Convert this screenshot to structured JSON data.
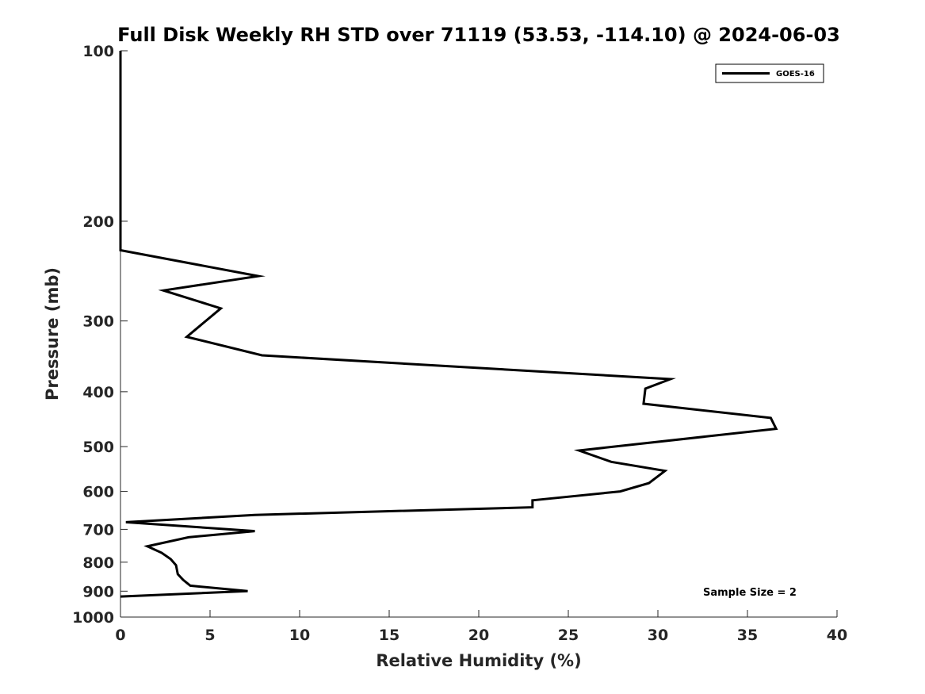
{
  "chart_data": {
    "type": "line",
    "title": "Full Disk Weekly RH STD over 71119 (53.53, -114.10) @ 2024-06-03",
    "xlabel": "Relative Humidity (%)",
    "ylabel": "Pressure (mb)",
    "xlim": [
      0,
      40
    ],
    "ylim": [
      100,
      1000
    ],
    "yscale": "log",
    "yreversed": true,
    "grid": false,
    "legend_position": "top-right",
    "xticks": [
      0,
      5,
      10,
      15,
      20,
      25,
      30,
      35,
      40
    ],
    "yticks": [
      100,
      200,
      300,
      400,
      500,
      600,
      700,
      800,
      900,
      1000
    ],
    "series": [
      {
        "name": "GOES-16",
        "color": "#000000",
        "points": [
          [
            0.0,
            100
          ],
          [
            0.0,
            150
          ],
          [
            0.0,
            200
          ],
          [
            0.0,
            225
          ],
          [
            7.7,
            250
          ],
          [
            2.4,
            265
          ],
          [
            5.6,
            285
          ],
          [
            3.7,
            320
          ],
          [
            7.9,
            345
          ],
          [
            30.7,
            380
          ],
          [
            29.3,
            395
          ],
          [
            29.2,
            420
          ],
          [
            36.3,
            445
          ],
          [
            36.6,
            465
          ],
          [
            25.6,
            508
          ],
          [
            27.4,
            532
          ],
          [
            30.4,
            552
          ],
          [
            29.5,
            580
          ],
          [
            27.9,
            600
          ],
          [
            23.0,
            622
          ],
          [
            23.0,
            640
          ],
          [
            7.5,
            660
          ],
          [
            0.3,
            680
          ],
          [
            7.5,
            705
          ],
          [
            3.8,
            723
          ],
          [
            1.5,
            750
          ],
          [
            2.3,
            770
          ],
          [
            2.8,
            790
          ],
          [
            3.1,
            810
          ],
          [
            3.2,
            840
          ],
          [
            3.5,
            860
          ],
          [
            3.9,
            880
          ],
          [
            7.1,
            900
          ],
          [
            0.0,
            920
          ]
        ]
      }
    ],
    "annotations": [
      "Sample Size = 2"
    ]
  }
}
